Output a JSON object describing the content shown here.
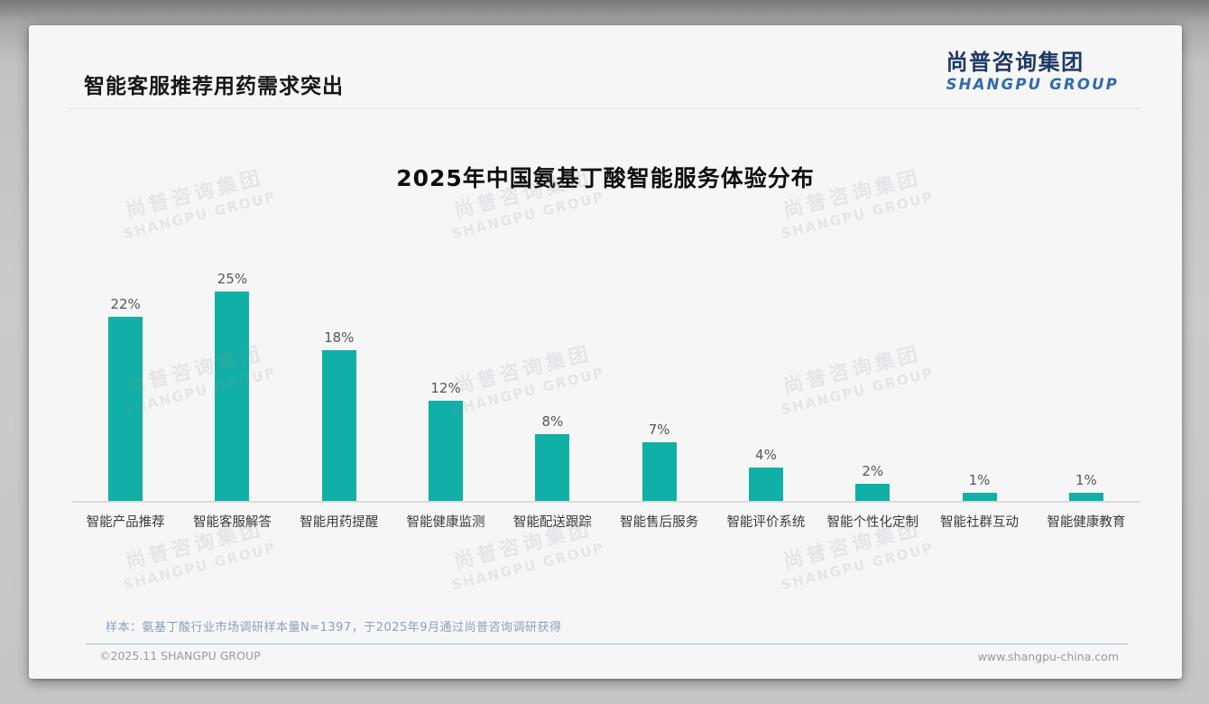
{
  "page": {
    "header_title": "智能客服推荐用药需求突出",
    "logo": {
      "cn": "尚普咨询集团",
      "en": "SHANGPU GROUP"
    },
    "watermark": {
      "cn": "尚普咨询集团",
      "en": "SHANGPU GROUP"
    },
    "footnote": "样本：氨基丁酸行业市场调研样本量N=1397，于2025年9月通过尚普咨询调研获得",
    "footer_left": "©2025.11 SHANGPU GROUP",
    "footer_right": "www.shangpu-china.com"
  },
  "colors": {
    "bar": "#10b0a6",
    "logo_cn": "#1d3a66",
    "logo_en": "#2f6bb0",
    "footnote": "#8da0b8"
  },
  "chart_data": {
    "type": "bar",
    "title": "2025年中国氨基丁酸智能服务体验分布",
    "categories": [
      "智能产品推荐",
      "智能客服解答",
      "智能用药提醒",
      "智能健康监测",
      "智能配送跟踪",
      "智能售后服务",
      "智能评价系统",
      "智能个性化定制",
      "智能社群互动",
      "智能健康教育"
    ],
    "values": [
      22,
      25,
      18,
      12,
      8,
      7,
      4,
      2,
      1,
      1
    ],
    "unit": "%",
    "value_label_format": "above-bar",
    "xlabel": "",
    "ylabel": "",
    "ylim": [
      0,
      27
    ],
    "grid": false,
    "legend": "none",
    "bar_color": "#10b0a6"
  }
}
